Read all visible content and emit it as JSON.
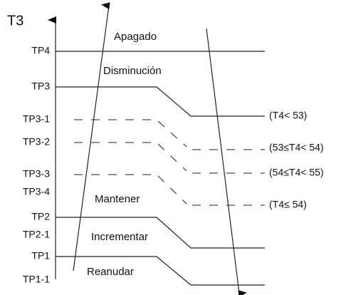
{
  "axis": {
    "label": "T3",
    "levels": [
      "TP4",
      "TP3",
      "TP3-1",
      "TP3-2",
      "TP3-3",
      "TP3-4",
      "TP2",
      "TP2-1",
      "TP1",
      "TP1-1"
    ]
  },
  "zones": [
    "Apagado",
    "Disminución",
    "Mantener",
    "Incrementar",
    "Reanudar"
  ],
  "conditions": [
    "(T4< 53)",
    "(53≤T4< 54)",
    "(54≤T4< 55)",
    "(T4≤ 54)"
  ]
}
